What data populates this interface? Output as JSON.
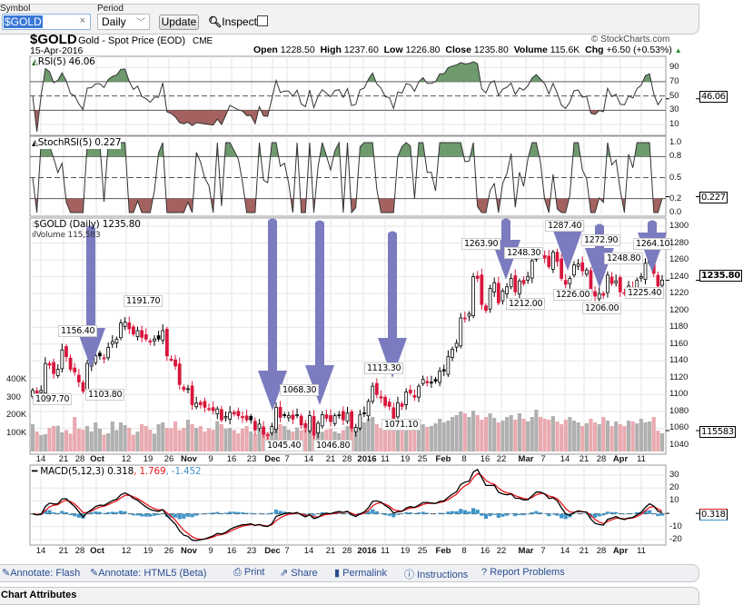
{
  "form": {
    "symbol_label": "Symbol",
    "symbol_value": "$GOLD",
    "period_label": "Period",
    "period_value": "Daily",
    "update_label": "Update",
    "inspect_label": "Inspect"
  },
  "header": {
    "symbol": "$GOLD",
    "name": "Gold - Spot Price (EOD)",
    "exchange": "CME",
    "date": "15-Apr-2016",
    "copyright": "© StockCharts.com",
    "ohlc": {
      "open_label": "Open",
      "open": "1228.50",
      "high_label": "High",
      "high": "1237.60",
      "low_label": "Low",
      "low": "1226.80",
      "close_label": "Close",
      "close": "1235.80",
      "volume_label": "Volume",
      "volume": "115.6K",
      "chg_label": "Chg",
      "chg": "+6.50 (+0.53%)"
    }
  },
  "panels": {
    "rsi": {
      "title": "RSI(5) 46.06",
      "value": "46.06",
      "ticks": [
        90,
        70,
        50,
        30,
        10
      ]
    },
    "stoch": {
      "title": "StochRSI(5) 0.227",
      "value": "0.227",
      "ticks": [
        "1.0",
        "0.8",
        "0.5",
        "0.2",
        "0.0"
      ]
    },
    "price": {
      "title": "$GOLD (Daily) 1235.80",
      "volume_title": "Volume 115,583",
      "value": "1235.80",
      "volume_value": "115583",
      "ticks": [
        1300,
        1280,
        1260,
        1240,
        1220,
        1200,
        1180,
        1160,
        1140,
        1120,
        1100,
        1080,
        1060,
        1040
      ],
      "volume_ticks": [
        "400K",
        "300",
        "200K",
        "100K"
      ]
    },
    "macd": {
      "title": "MACD(5,12,3) 0.318",
      "signal": ", 1.769",
      "hist": ", -1.452",
      "value": "0.318",
      "ticks": [
        30,
        20,
        10,
        -10,
        -20
      ]
    }
  },
  "x_axis_labels": [
    "14",
    "21",
    "28",
    "Oct",
    "12",
    "19",
    "26",
    "Nov",
    "9",
    "16",
    "23",
    "Dec",
    "7",
    "14",
    "21",
    "28",
    "2016",
    "11",
    "19",
    "25",
    "Feb",
    "8",
    "16",
    "22",
    "Mar",
    "7",
    "14",
    "21",
    "28",
    "Apr",
    "11"
  ],
  "x_axis_bold": [
    "Oct",
    "Nov",
    "Dec",
    "2016",
    "Feb",
    "Mar",
    "Apr"
  ],
  "price_labels": [
    "1097.70",
    "1156.40",
    "1103.80",
    "1191.70",
    "1068.30",
    "1045.40",
    "1046.80",
    "1113.30",
    "1071.10",
    "1263.90",
    "1248.30",
    "1212.00",
    "1287.40",
    "1272.90",
    "1226.00",
    "1248.80",
    "1206.00",
    "1264.10",
    "1225.40"
  ],
  "footer": {
    "links": [
      "Annotate: Flash",
      "Annotate: HTML5 (Beta)",
      "Print",
      "Share",
      "Permalink",
      "Instructions",
      "Report Problems"
    ],
    "section": "Chart Attributes"
  },
  "colors": {
    "up": "#000000",
    "down": "#d8163c",
    "vol_up": "#b0b0b0",
    "vol_down": "#e9aab0",
    "arrow": "#7b7bc0",
    "rsi_hi": "#6e9a6e",
    "rsi_lo": "#a3625f",
    "macd": "#000000",
    "signal": "#e8161b",
    "hist": "#3e95c8"
  },
  "chart_data": {
    "type": "candlestick",
    "title": "$GOLD Gold - Spot Price (EOD) CME",
    "date_range": [
      "2015-09",
      "2016-04-15"
    ],
    "ylim": [
      1040,
      1300
    ],
    "closes": [
      1105,
      1100,
      1105,
      1137,
      1135,
      1125,
      1130,
      1153,
      1145,
      1130,
      1127,
      1115,
      1104,
      1137,
      1138,
      1146,
      1146,
      1143,
      1156,
      1163,
      1166,
      1185,
      1186,
      1178,
      1172,
      1176,
      1168,
      1166,
      1163,
      1166,
      1166,
      1176,
      1146,
      1142,
      1134,
      1112,
      1106,
      1107,
      1088,
      1090,
      1088,
      1085,
      1083,
      1081,
      1083,
      1070,
      1074,
      1079,
      1077,
      1075,
      1074,
      1070,
      1070,
      1058,
      1065,
      1053,
      1052,
      1062,
      1085,
      1073,
      1075,
      1075,
      1071,
      1076,
      1064,
      1061,
      1075,
      1052,
      1066,
      1076,
      1072,
      1068,
      1075,
      1076,
      1070,
      1078,
      1060,
      1061,
      1076,
      1078,
      1092,
      1110,
      1100,
      1096,
      1087,
      1086,
      1072,
      1090,
      1089,
      1103,
      1102,
      1097,
      1110,
      1118,
      1114,
      1114,
      1116,
      1128,
      1128,
      1145,
      1154,
      1161,
      1191,
      1190,
      1196,
      1240,
      1238,
      1207,
      1200,
      1226,
      1233,
      1209,
      1223,
      1228,
      1238,
      1222,
      1235,
      1232,
      1240,
      1259,
      1270,
      1266,
      1262,
      1252,
      1269,
      1258,
      1238,
      1231,
      1238,
      1254,
      1255,
      1247,
      1248,
      1220,
      1217,
      1220,
      1218,
      1242,
      1232,
      1235,
      1222,
      1221,
      1229,
      1227,
      1236,
      1240,
      1256,
      1261,
      1244,
      1229,
      1236
    ],
    "volumes_k": [
      150,
      110,
      90,
      95,
      130,
      140,
      142,
      105,
      118,
      98,
      190,
      125,
      120,
      140,
      110,
      160,
      125,
      92,
      100,
      165,
      118,
      160,
      145,
      130,
      92,
      110,
      150,
      140,
      120,
      98,
      150,
      160,
      130,
      128,
      165,
      118,
      130,
      175,
      150,
      130,
      140,
      110,
      128,
      120,
      168,
      150,
      125,
      130,
      118,
      100,
      125,
      140,
      110,
      95,
      120,
      140,
      105,
      130,
      125,
      150,
      140,
      120,
      110,
      132,
      118,
      150,
      128,
      115,
      140,
      108,
      120,
      125,
      110,
      100,
      118,
      140,
      130,
      125,
      170,
      160,
      180,
      190,
      150,
      130,
      165,
      140,
      180,
      150,
      155,
      140,
      130,
      160,
      175,
      150,
      135,
      140,
      155,
      180,
      160,
      170,
      190,
      200,
      220,
      210,
      190,
      225,
      200,
      175,
      190,
      210,
      185,
      160,
      170,
      190,
      200,
      175,
      210,
      180,
      165,
      190,
      230,
      190,
      180,
      175,
      195,
      165,
      150,
      175,
      190,
      170,
      160,
      140,
      155,
      180,
      160,
      150,
      190,
      170,
      140,
      165,
      150,
      140,
      170,
      165,
      155,
      180,
      160,
      165,
      190,
      115
    ]
  }
}
